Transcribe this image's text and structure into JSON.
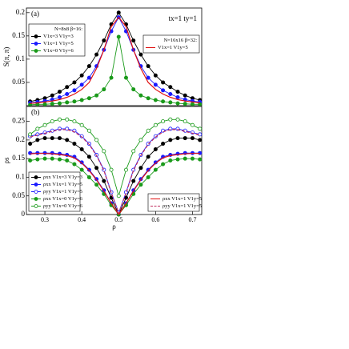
{
  "chart_data": [
    {
      "type": "line",
      "panel_label": "(a)",
      "note": "tx=1   ty=1",
      "y_label": "S(π, π)",
      "x": [
        0.26,
        0.28,
        0.3,
        0.32,
        0.34,
        0.36,
        0.38,
        0.4,
        0.42,
        0.44,
        0.46,
        0.48,
        0.5,
        0.52,
        0.54,
        0.56,
        0.58,
        0.6,
        0.62,
        0.64,
        0.66,
        0.68,
        0.7,
        0.72
      ],
      "xlim": [
        0.25,
        0.725
      ],
      "ylim": [
        0,
        0.21
      ],
      "yticks": [
        0.05,
        0.1,
        0.15,
        0.2
      ],
      "legends": [
        {
          "loc": "upper left",
          "title": "N=8x8   β=16:"
        },
        {
          "loc": "upper right",
          "title": "N=16x16   β=32:"
        }
      ],
      "series": [
        {
          "name": "V1x=3  V1y=3",
          "color": "#000000",
          "marker": "filled",
          "dash": false,
          "legend": "upper left",
          "values": [
            0.009,
            0.012,
            0.016,
            0.022,
            0.03,
            0.04,
            0.05,
            0.065,
            0.085,
            0.11,
            0.14,
            0.175,
            0.2,
            0.175,
            0.14,
            0.11,
            0.085,
            0.065,
            0.05,
            0.04,
            0.03,
            0.022,
            0.016,
            0.012
          ]
        },
        {
          "name": "V1x=1  V1y=5",
          "color": "#1a1aff",
          "marker": "filled",
          "dash": false,
          "legend": "upper left",
          "values": [
            0.006,
            0.008,
            0.01,
            0.013,
            0.018,
            0.025,
            0.033,
            0.045,
            0.06,
            0.085,
            0.12,
            0.16,
            0.19,
            0.16,
            0.12,
            0.085,
            0.06,
            0.045,
            0.033,
            0.025,
            0.018,
            0.013,
            0.01,
            0.008
          ]
        },
        {
          "name": "V1x=0  V1y=6",
          "color": "#1a9a1a",
          "marker": "filled",
          "dash": false,
          "legend": "upper left",
          "values": [
            0.002,
            0.003,
            0.003,
            0.004,
            0.005,
            0.007,
            0.009,
            0.012,
            0.016,
            0.022,
            0.035,
            0.06,
            0.148,
            0.06,
            0.035,
            0.022,
            0.016,
            0.012,
            0.009,
            0.007,
            0.005,
            0.004,
            0.003,
            0.003
          ]
        },
        {
          "name": "V1x=1  V1y=5",
          "color": "#e01010",
          "marker": "none",
          "dash": false,
          "legend": "upper right",
          "values": [
            0.005,
            0.006,
            0.008,
            0.01,
            0.013,
            0.018,
            0.025,
            0.035,
            0.05,
            0.08,
            0.12,
            0.17,
            0.19,
            0.17,
            0.12,
            0.08,
            0.05,
            0.035,
            0.025,
            0.018,
            0.013,
            0.01,
            0.008,
            0.006
          ]
        }
      ]
    },
    {
      "type": "line",
      "panel_label": "(b)",
      "y_label": "ρs",
      "x_label": "ρ",
      "x": [
        0.26,
        0.28,
        0.3,
        0.32,
        0.34,
        0.36,
        0.38,
        0.4,
        0.42,
        0.44,
        0.46,
        0.48,
        0.5,
        0.52,
        0.54,
        0.56,
        0.58,
        0.6,
        0.62,
        0.64,
        0.66,
        0.68,
        0.7,
        0.72
      ],
      "xlim": [
        0.25,
        0.725
      ],
      "xticks": [
        0.3,
        0.4,
        0.5,
        0.6,
        0.7
      ],
      "ylim": [
        0,
        0.29
      ],
      "yticks": [
        0,
        0.05,
        0.1,
        0.15,
        0.2,
        0.25
      ],
      "legends": [
        {
          "loc": "lower left"
        },
        {
          "loc": "lower right"
        }
      ],
      "series": [
        {
          "name": "ρxx  V1x=3  V1y=3",
          "color": "#000000",
          "marker": "filled",
          "dash": false,
          "legend": "lower left",
          "values": [
            0.19,
            0.2,
            0.205,
            0.205,
            0.205,
            0.2,
            0.19,
            0.175,
            0.155,
            0.125,
            0.09,
            0.045,
            0,
            0.045,
            0.09,
            0.125,
            0.155,
            0.175,
            0.19,
            0.2,
            0.205,
            0.205,
            0.205,
            0.2
          ]
        },
        {
          "name": "ρxx  V1x=1  V1y=5",
          "color": "#1a1aff",
          "marker": "filled",
          "dash": false,
          "legend": "lower left",
          "values": [
            0.165,
            0.165,
            0.165,
            0.165,
            0.163,
            0.16,
            0.155,
            0.14,
            0.12,
            0.095,
            0.065,
            0.03,
            0,
            0.03,
            0.065,
            0.095,
            0.12,
            0.14,
            0.155,
            0.16,
            0.163,
            0.165,
            0.165,
            0.165
          ]
        },
        {
          "name": "ρyy  V1x=1  V1y=5",
          "color": "#1a1aff",
          "marker": "open",
          "dash": false,
          "legend": "lower left",
          "values": [
            0.21,
            0.215,
            0.22,
            0.225,
            0.23,
            0.23,
            0.225,
            0.21,
            0.19,
            0.16,
            0.12,
            0.06,
            0.005,
            0.06,
            0.12,
            0.16,
            0.19,
            0.21,
            0.225,
            0.23,
            0.23,
            0.225,
            0.22,
            0.215
          ]
        },
        {
          "name": "ρxx  V1x=0  V1y=6",
          "color": "#1a9a1a",
          "marker": "filled",
          "dash": false,
          "legend": "lower left",
          "values": [
            0.145,
            0.148,
            0.15,
            0.15,
            0.148,
            0.145,
            0.135,
            0.12,
            0.1,
            0.08,
            0.055,
            0.025,
            0,
            0.025,
            0.055,
            0.08,
            0.1,
            0.12,
            0.135,
            0.145,
            0.148,
            0.15,
            0.15,
            0.148
          ]
        },
        {
          "name": "ρyy  V1x=0  V1y=6",
          "color": "#1a9a1a",
          "marker": "open",
          "dash": false,
          "legend": "lower left",
          "values": [
            0.215,
            0.23,
            0.24,
            0.25,
            0.255,
            0.255,
            0.25,
            0.24,
            0.225,
            0.2,
            0.17,
            0.12,
            0.05,
            0.12,
            0.17,
            0.2,
            0.225,
            0.24,
            0.25,
            0.255,
            0.255,
            0.25,
            0.24,
            0.23
          ]
        },
        {
          "name": "ρxx  V1x=1  V1y=5",
          "color": "#e01010",
          "marker": "none",
          "dash": false,
          "legend": "lower right",
          "values": [
            0.163,
            0.164,
            0.164,
            0.163,
            0.161,
            0.158,
            0.152,
            0.138,
            0.118,
            0.093,
            0.063,
            0.03,
            0,
            0.03,
            0.063,
            0.093,
            0.118,
            0.138,
            0.152,
            0.158,
            0.161,
            0.163,
            0.164,
            0.164
          ]
        },
        {
          "name": "ρyy  V1x=1  V1y=5",
          "color": "#c03060",
          "marker": "none",
          "dash": true,
          "legend": "lower right",
          "values": [
            0.208,
            0.213,
            0.218,
            0.223,
            0.228,
            0.228,
            0.222,
            0.208,
            0.188,
            0.158,
            0.118,
            0.058,
            0.003,
            0.058,
            0.118,
            0.158,
            0.188,
            0.208,
            0.222,
            0.228,
            0.228,
            0.223,
            0.218,
            0.213
          ]
        }
      ]
    }
  ]
}
